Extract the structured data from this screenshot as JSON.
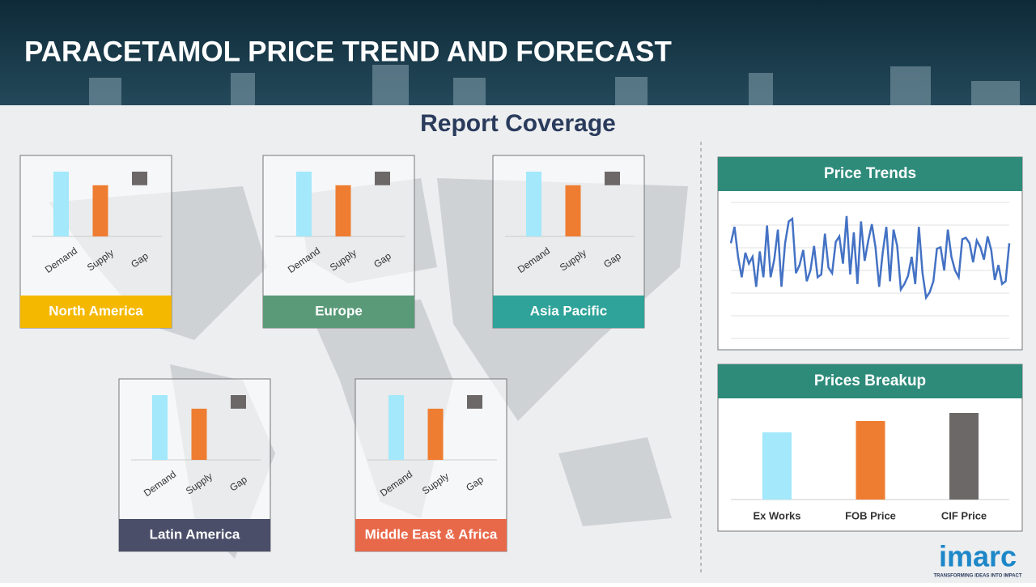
{
  "header": {
    "title": "PARACETAMOL PRICE TREND AND FORECAST"
  },
  "section_title": "Report Coverage",
  "logo": {
    "name": "imarc",
    "tagline": "TRANSFORMING IDEAS INTO IMPACT"
  },
  "chart_data": [
    {
      "type": "bar",
      "waterfall": true,
      "title": "North America",
      "title_color": "#f5b800",
      "categories": [
        "Demand",
        "Supply",
        "Gap"
      ],
      "values": [
        100,
        79,
        21
      ],
      "colors": [
        "#a3e8fb",
        "#ee7d31",
        "#6d6868"
      ],
      "ylim": [
        0,
        100
      ]
    },
    {
      "type": "bar",
      "waterfall": true,
      "title": "Europe",
      "title_color": "#5a9a78",
      "categories": [
        "Demand",
        "Supply",
        "Gap"
      ],
      "values": [
        100,
        79,
        21
      ],
      "colors": [
        "#a3e8fb",
        "#ee7d31",
        "#6d6868"
      ],
      "ylim": [
        0,
        100
      ]
    },
    {
      "type": "bar",
      "waterfall": true,
      "title": "Asia Pacific",
      "title_color": "#2fa39a",
      "categories": [
        "Demand",
        "Supply",
        "Gap"
      ],
      "values": [
        100,
        79,
        21
      ],
      "colors": [
        "#a3e8fb",
        "#ee7d31",
        "#6d6868"
      ],
      "ylim": [
        0,
        100
      ]
    },
    {
      "type": "bar",
      "waterfall": true,
      "title": "Latin America",
      "title_color": "#4a4e69",
      "categories": [
        "Demand",
        "Supply",
        "Gap"
      ],
      "values": [
        100,
        79,
        21
      ],
      "colors": [
        "#a3e8fb",
        "#ee7d31",
        "#6d6868"
      ],
      "ylim": [
        0,
        100
      ]
    },
    {
      "type": "bar",
      "waterfall": true,
      "title": "Middle East & Africa",
      "title_color": "#e8694a",
      "categories": [
        "Demand",
        "Supply",
        "Gap"
      ],
      "values": [
        100,
        79,
        21
      ],
      "colors": [
        "#a3e8fb",
        "#ee7d31",
        "#6d6868"
      ],
      "ylim": [
        0,
        100
      ]
    },
    {
      "type": "line",
      "title": "Price Trends",
      "title_color": "#2e8b7a",
      "color": "#4472c4",
      "grid": true,
      "ylim": [
        0,
        100
      ],
      "values": [
        70,
        82,
        60,
        45,
        63,
        55,
        60,
        38,
        64,
        45,
        83,
        45,
        58,
        80,
        38,
        70,
        86,
        88,
        48,
        54,
        65,
        42,
        50,
        68,
        45,
        47,
        77,
        52,
        48,
        71,
        75,
        55,
        90,
        47,
        78,
        40,
        86,
        57,
        72,
        84,
        67,
        38,
        63,
        82,
        42,
        80,
        68,
        36,
        40,
        46,
        60,
        40,
        82,
        48,
        30,
        34,
        42,
        66,
        67,
        50,
        80,
        60,
        50,
        45,
        73,
        74,
        70,
        56,
        72,
        67,
        58,
        75,
        65,
        43,
        54,
        40,
        42,
        70
      ]
    },
    {
      "type": "bar",
      "title": "Prices Breakup",
      "title_color": "#2e8b7a",
      "categories": [
        "Ex Works",
        "FOB Price",
        "CIF Price"
      ],
      "values": [
        83,
        97,
        107
      ],
      "colors": [
        "#a3e8fb",
        "#ee7d31",
        "#6d6868"
      ],
      "ylim": [
        0,
        120
      ]
    }
  ]
}
